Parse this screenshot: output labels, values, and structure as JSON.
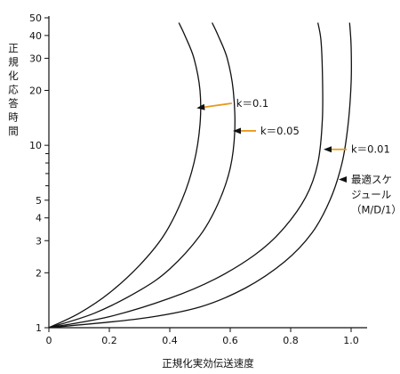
{
  "chart_data": {
    "type": "line",
    "title": "",
    "xlabel": "正規化実効伝送速度",
    "ylabel": "正規化応答時間",
    "x_scale": "linear",
    "y_scale": "log",
    "xlim": [
      0,
      1.08
    ],
    "ylim": [
      1,
      55
    ],
    "grid": false,
    "x_ticks": [
      0,
      0.2,
      0.4,
      0.6,
      0.8,
      1.0
    ],
    "x_tick_labels": [
      "0",
      "0.2",
      "0.4",
      "0.6",
      "0.8",
      "1.0"
    ],
    "y_ticks": [
      1,
      2,
      3,
      4,
      5,
      10,
      20,
      30,
      40,
      50
    ],
    "y_tick_labels": [
      "1",
      "2",
      "3",
      "4",
      "5",
      "10",
      "20",
      "30",
      "40",
      "50"
    ],
    "y_minor_ticks": [
      6,
      7,
      8,
      9
    ],
    "series": [
      {
        "name": "k＝0.1",
        "x": [
          0,
          0.1,
          0.2,
          0.3,
          0.38,
          0.44,
          0.48,
          0.5,
          0.5,
          0.48,
          0.45,
          0.43
        ],
        "y": [
          1,
          1.2,
          1.55,
          2.2,
          3.2,
          5,
          8,
          13,
          20,
          30,
          40,
          47
        ]
      },
      {
        "name": "k＝0.05",
        "x": [
          0,
          0.15,
          0.3,
          0.4,
          0.5,
          0.56,
          0.6,
          0.615,
          0.61,
          0.59,
          0.56,
          0.54
        ],
        "y": [
          1,
          1.2,
          1.6,
          2.1,
          3.2,
          4.8,
          7.5,
          12,
          20,
          30,
          40,
          47
        ]
      },
      {
        "name": "k＝0.01",
        "x": [
          0,
          0.2,
          0.4,
          0.55,
          0.68,
          0.77,
          0.85,
          0.89,
          0.905,
          0.905,
          0.9,
          0.89
        ],
        "y": [
          1,
          1.15,
          1.45,
          1.85,
          2.5,
          3.4,
          5.2,
          8,
          14,
          25,
          38,
          47
        ]
      },
      {
        "name": "最適スケジュール（M/D/1）",
        "x": [
          0,
          0.3,
          0.5,
          0.65,
          0.78,
          0.87,
          0.93,
          0.97,
          0.99,
          1.0,
          1.0,
          0.995
        ],
        "y": [
          1,
          1.12,
          1.3,
          1.65,
          2.3,
          3.3,
          5,
          8,
          13,
          22,
          35,
          47
        ]
      }
    ],
    "annotations": [
      {
        "label": "k＝0.1",
        "target": [
          0.48,
          16
        ],
        "text_at": [
          0.62,
          17
        ]
      },
      {
        "label": "k＝0.05",
        "target": [
          0.6,
          12
        ],
        "text_at": [
          0.7,
          12
        ]
      },
      {
        "label": "k＝0.01",
        "target": [
          0.9,
          9.5
        ],
        "text_at": [
          1.0,
          9.5
        ]
      },
      {
        "label_lines": [
          "最適スケ",
          "ジュール",
          "（M/D/1）"
        ],
        "target": [
          0.95,
          6.5
        ],
        "text_at": [
          1.0,
          6.5
        ]
      }
    ],
    "colors": {
      "curve": "#111111",
      "arrow_shaft": "#e89a1c",
      "arrow_head": "#111111",
      "axis": "#111111"
    }
  }
}
